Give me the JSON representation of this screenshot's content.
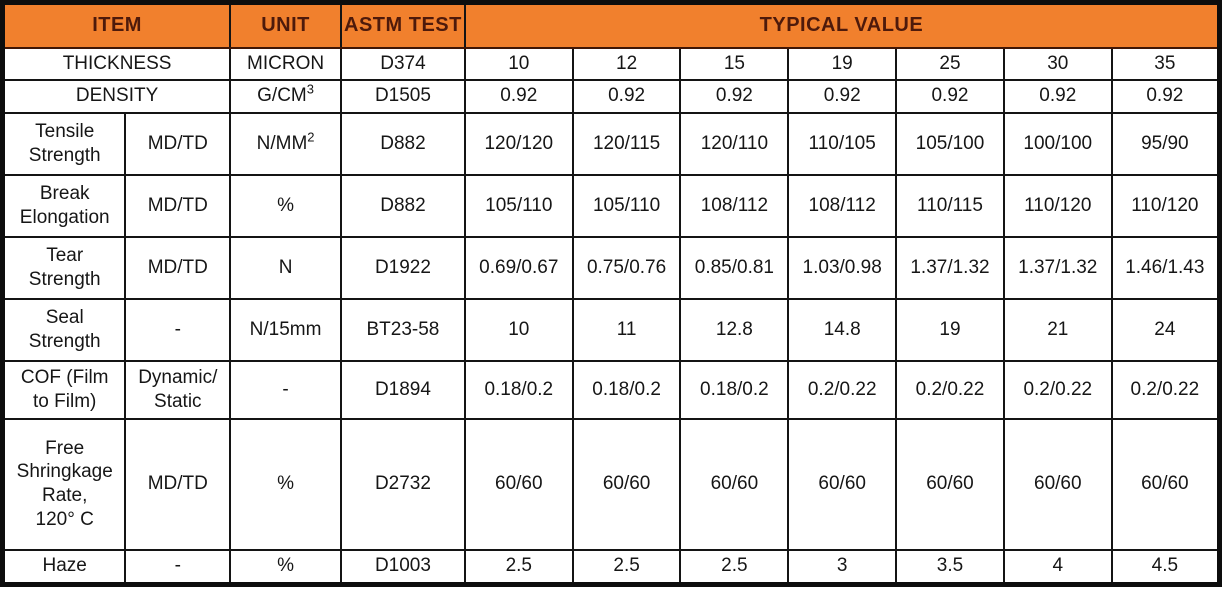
{
  "table": {
    "title_semantic": "Film technical specification table",
    "colors": {
      "header_background": "#F1802D",
      "header_text": "#4E1A0B",
      "grid_border": "#141414",
      "cell_text": "#161616",
      "cell_background": "#FFFFFF"
    },
    "header": {
      "item": "ITEM",
      "unit": "UNIT",
      "astm": "ASTM TEST",
      "typical_value": "TYPICAL VALUE"
    },
    "rows": [
      {
        "item": "THICKNESS",
        "unit": "MICRON",
        "astm": "D374",
        "values": [
          "10",
          "12",
          "15",
          "19",
          "25",
          "30",
          "35"
        ]
      },
      {
        "item": "DENSITY",
        "unit": "G/CM",
        "unit_sup": "3",
        "astm": "D1505",
        "values": [
          "0.92",
          "0.92",
          "0.92",
          "0.92",
          "0.92",
          "0.92",
          "0.92"
        ]
      },
      {
        "item": "Tensile\nStrength",
        "sub": "MD/TD",
        "unit": "N/MM",
        "unit_sup": "2",
        "astm": "D882",
        "values": [
          "120/120",
          "120/115",
          "120/110",
          "110/105",
          "105/100",
          "100/100",
          "95/90"
        ]
      },
      {
        "item": "Break\nElongation",
        "sub": "MD/TD",
        "unit": "%",
        "astm": "D882",
        "values": [
          "105/110",
          "105/110",
          "108/112",
          "108/112",
          "110/115",
          "110/120",
          "110/120"
        ]
      },
      {
        "item": "Tear\nStrength",
        "sub": "MD/TD",
        "unit": "N",
        "astm": "D1922",
        "values": [
          "0.69/0.67",
          "0.75/0.76",
          "0.85/0.81",
          "1.03/0.98",
          "1.37/1.32",
          "1.37/1.32",
          "1.46/1.43"
        ]
      },
      {
        "item": "Seal\nStrength",
        "sub": "-",
        "unit": "N/15mm",
        "astm": "BT23-58",
        "values": [
          "10",
          "11",
          "12.8",
          "14.8",
          "19",
          "21",
          "24"
        ]
      },
      {
        "item": "COF (Film\nto Film)",
        "sub": "Dynamic/\nStatic",
        "unit": "-",
        "astm": "D1894",
        "values": [
          "0.18/0.2",
          "0.18/0.2",
          "0.18/0.2",
          "0.2/0.22",
          "0.2/0.22",
          "0.2/0.22",
          "0.2/0.22"
        ]
      },
      {
        "item": "Free\nShringkage\nRate,\n120° C",
        "sub": "MD/TD",
        "unit": "%",
        "astm": "D2732",
        "values": [
          "60/60",
          "60/60",
          "60/60",
          "60/60",
          "60/60",
          "60/60",
          "60/60"
        ]
      },
      {
        "item": "Haze",
        "sub": "-",
        "unit": "%",
        "astm": "D1003",
        "values": [
          "2.5",
          "2.5",
          "2.5",
          "3",
          "3.5",
          "4",
          "4.5"
        ]
      }
    ]
  }
}
